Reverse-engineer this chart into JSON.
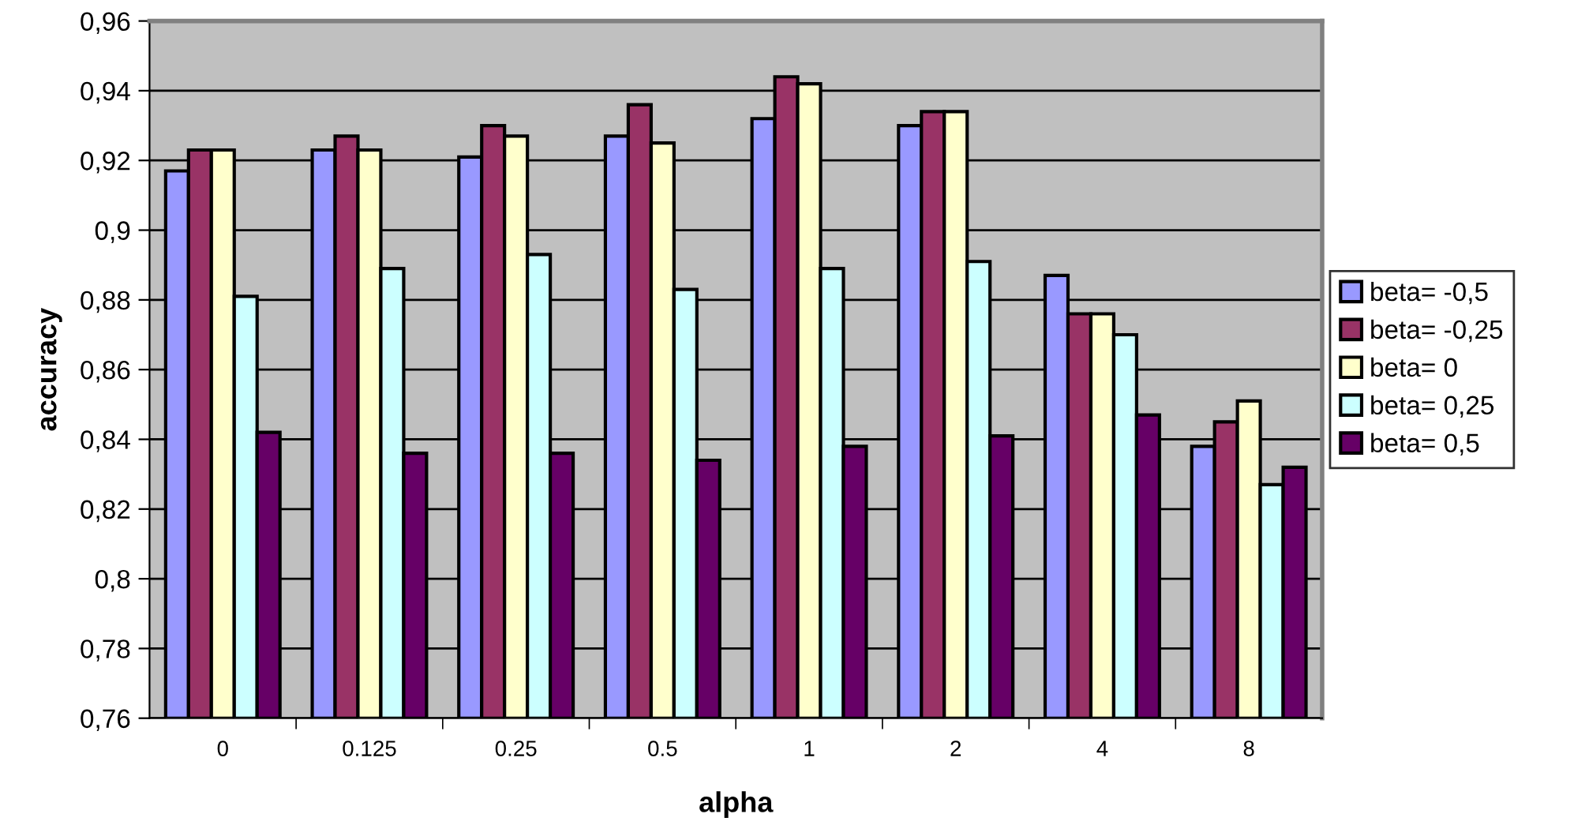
{
  "chart_data": {
    "type": "bar",
    "xlabel": "alpha",
    "ylabel": "accuracy",
    "categories": [
      "0",
      "0.125",
      "0.25",
      "0.5",
      "1",
      "2",
      "4",
      "8"
    ],
    "series": [
      {
        "name": "beta= -0,5",
        "color": "#9999ff",
        "values": [
          0.917,
          0.923,
          0.921,
          0.927,
          0.932,
          0.93,
          0.887,
          0.838
        ]
      },
      {
        "name": "beta= -0,25",
        "color": "#993366",
        "values": [
          0.923,
          0.927,
          0.93,
          0.936,
          0.944,
          0.934,
          0.876,
          0.845
        ]
      },
      {
        "name": "beta= 0",
        "color": "#ffffcc",
        "values": [
          0.923,
          0.923,
          0.927,
          0.925,
          0.942,
          0.934,
          0.876,
          0.851
        ]
      },
      {
        "name": "beta= 0,25",
        "color": "#ccffff",
        "values": [
          0.881,
          0.889,
          0.893,
          0.883,
          0.889,
          0.891,
          0.87,
          0.827
        ]
      },
      {
        "name": "beta= 0,5",
        "color": "#660066",
        "values": [
          0.842,
          0.836,
          0.836,
          0.834,
          0.838,
          0.841,
          0.847,
          0.832
        ]
      }
    ],
    "ylim": [
      0.76,
      0.96
    ],
    "yticks": [
      {
        "value": 0.76,
        "label": "0,76"
      },
      {
        "value": 0.78,
        "label": "0,78"
      },
      {
        "value": 0.8,
        "label": "0,8"
      },
      {
        "value": 0.82,
        "label": "0,82"
      },
      {
        "value": 0.84,
        "label": "0,84"
      },
      {
        "value": 0.86,
        "label": "0,86"
      },
      {
        "value": 0.88,
        "label": "0,88"
      },
      {
        "value": 0.9,
        "label": "0,9"
      },
      {
        "value": 0.92,
        "label": "0,92"
      },
      {
        "value": 0.94,
        "label": "0,94"
      },
      {
        "value": 0.96,
        "label": "0,96"
      }
    ],
    "grid": "y",
    "legend": "right"
  }
}
